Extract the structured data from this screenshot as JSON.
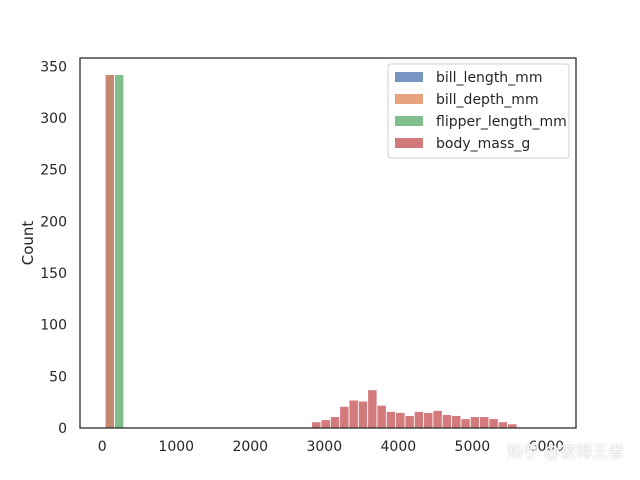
{
  "chart_data": {
    "type": "bar",
    "ylabel": "Count",
    "xlabel": "",
    "xlim": [
      -300,
      6400
    ],
    "ylim": [
      0,
      358
    ],
    "xticks": [
      0,
      1000,
      2000,
      3000,
      4000,
      5000,
      6000
    ],
    "yticks": [
      0,
      50,
      100,
      150,
      200,
      250,
      300,
      350
    ],
    "grid": false,
    "legend_position": "top-right",
    "bin_width": 126,
    "series": [
      {
        "name": "bill_length_mm",
        "color": "#4c72b0",
        "bins": [
          {
            "x": 40,
            "count": 342
          }
        ]
      },
      {
        "name": "bill_depth_mm",
        "color": "#dd8452",
        "bins": [
          {
            "x": 40,
            "count": 342
          }
        ]
      },
      {
        "name": "flipper_length_mm",
        "color": "#55a868",
        "bins": [
          {
            "x": 166,
            "count": 342
          }
        ]
      },
      {
        "name": "body_mass_g",
        "color": "#c44e52",
        "bins": [
          {
            "x": 2830,
            "count": 6
          },
          {
            "x": 2956,
            "count": 8
          },
          {
            "x": 3082,
            "count": 11
          },
          {
            "x": 3208,
            "count": 21
          },
          {
            "x": 3334,
            "count": 27
          },
          {
            "x": 3460,
            "count": 26
          },
          {
            "x": 3586,
            "count": 37
          },
          {
            "x": 3712,
            "count": 22
          },
          {
            "x": 3838,
            "count": 16
          },
          {
            "x": 3964,
            "count": 15
          },
          {
            "x": 4090,
            "count": 12
          },
          {
            "x": 4216,
            "count": 16
          },
          {
            "x": 4342,
            "count": 15
          },
          {
            "x": 4468,
            "count": 17
          },
          {
            "x": 4594,
            "count": 13
          },
          {
            "x": 4720,
            "count": 12
          },
          {
            "x": 4846,
            "count": 9
          },
          {
            "x": 4972,
            "count": 11
          },
          {
            "x": 5098,
            "count": 11
          },
          {
            "x": 5224,
            "count": 9
          },
          {
            "x": 5350,
            "count": 6
          },
          {
            "x": 5476,
            "count": 4
          },
          {
            "x": 5602,
            "count": 1
          },
          {
            "x": 5728,
            "count": 1
          }
        ]
      }
    ]
  },
  "watermark": "知乎 @彼得王者"
}
